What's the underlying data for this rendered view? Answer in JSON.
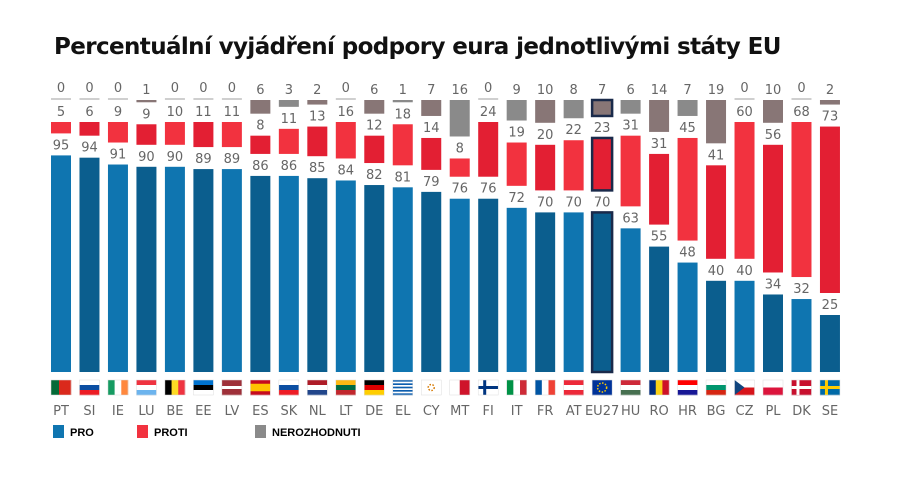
{
  "chart_data": {
    "type": "bar",
    "stacked": true,
    "title": "Percentuální vyjádření podpory eura jednotlivými státy EU",
    "categories": [
      "PT",
      "SI",
      "IE",
      "LU",
      "BE",
      "EE",
      "LV",
      "ES",
      "SK",
      "NL",
      "LT",
      "DE",
      "EL",
      "CY",
      "MT",
      "FI",
      "IT",
      "FR",
      "AT",
      "EU27",
      "HU",
      "RO",
      "HR",
      "BG",
      "CZ",
      "PL",
      "DK",
      "SE"
    ],
    "series": [
      {
        "name": "PRO",
        "color": "#0f75b0",
        "values": [
          95,
          94,
          91,
          90,
          90,
          89,
          89,
          86,
          86,
          85,
          84,
          82,
          81,
          79,
          76,
          76,
          72,
          70,
          70,
          70,
          63,
          55,
          48,
          40,
          40,
          34,
          32,
          25
        ]
      },
      {
        "name": "PROTI",
        "color": "#f2323f",
        "values": [
          5,
          6,
          9,
          9,
          10,
          11,
          11,
          8,
          11,
          13,
          16,
          12,
          18,
          14,
          8,
          24,
          19,
          20,
          22,
          23,
          31,
          31,
          45,
          41,
          60,
          56,
          68,
          73
        ]
      },
      {
        "name": "NEROZHODNUTI",
        "color": "#8a8a8a",
        "values": [
          0,
          0,
          0,
          1,
          0,
          0,
          0,
          6,
          3,
          2,
          0,
          6,
          1,
          7,
          16,
          0,
          9,
          10,
          8,
          7,
          6,
          14,
          7,
          19,
          0,
          10,
          0,
          2
        ]
      }
    ],
    "highlight": "EU27",
    "legend_position": "bottom-left",
    "grid": false
  }
}
